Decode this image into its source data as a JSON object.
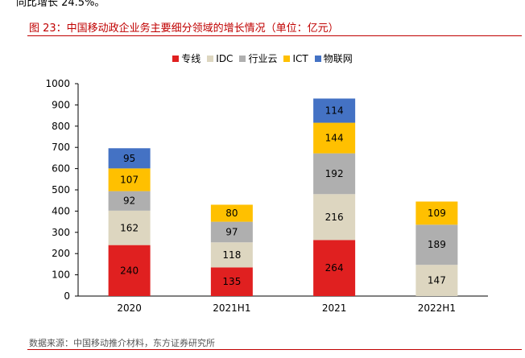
{
  "header_text": "同比增长 24.5%。",
  "figure_title": "图 23：中国移动政企业务主要细分领域的增长情况（单位：亿元）",
  "source": "数据来源：中国移动推介材料，东方证券研究所",
  "colors": {
    "专线": "#e02020",
    "IDC": "#ddd6c0",
    "行业云": "#afafaf",
    "ICT": "#ffc000",
    "物联网": "#4472c4"
  },
  "chart_data": {
    "type": "bar",
    "stacked": true,
    "title": "图 23：中国移动政企业务主要细分领域的增长情况（单位：亿元）",
    "xlabel": "",
    "ylabel": "",
    "categories": [
      "2020",
      "2021H1",
      "2021",
      "2022H1"
    ],
    "series": [
      {
        "name": "专线",
        "values": [
          240,
          135,
          264,
          null
        ]
      },
      {
        "name": "IDC",
        "values": [
          162,
          118,
          216,
          147
        ]
      },
      {
        "name": "行业云",
        "values": [
          92,
          97,
          192,
          189
        ]
      },
      {
        "name": "ICT",
        "values": [
          107,
          80,
          144,
          109
        ]
      },
      {
        "name": "物联网",
        "values": [
          95,
          null,
          114,
          null
        ]
      }
    ],
    "ylim": [
      0,
      1000
    ],
    "yticks": [
      "0",
      "100",
      "200",
      "300",
      "400",
      "500",
      "600",
      "700",
      "800",
      "900",
      "1000"
    ],
    "grid": false,
    "legend_position": "top-center"
  }
}
